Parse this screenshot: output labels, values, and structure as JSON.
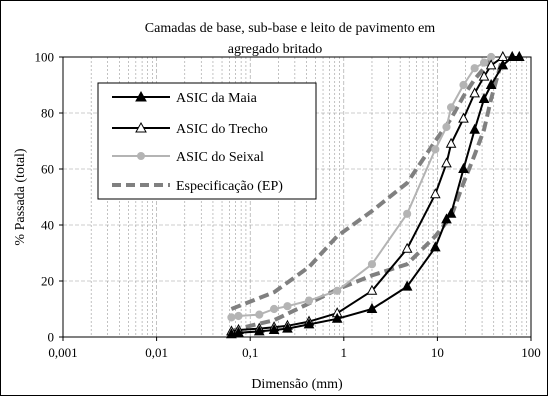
{
  "chart_data": {
    "type": "line",
    "title_lines": [
      "Camadas de base, sub-base e leito de pavimento em",
      "agregado britado"
    ],
    "xlabel": "Dimensão (mm)",
    "ylabel": "% Passada (total)",
    "xscale": "log",
    "xlim": [
      0.001,
      100
    ],
    "ylim": [
      0,
      100
    ],
    "x_ticks": [
      "0,001",
      "0,01",
      "0,1",
      "1",
      "10",
      "100"
    ],
    "y_ticks": [
      "0",
      "20",
      "40",
      "60",
      "80",
      "100"
    ],
    "grid": true,
    "legend_position": "top-left",
    "series": [
      {
        "name": "ASIC da Maia",
        "color": "#000000",
        "marker": "filled-triangle",
        "line": "solid",
        "points": [
          [
            0.063,
            1
          ],
          [
            0.075,
            1.5
          ],
          [
            0.125,
            2
          ],
          [
            0.18,
            2.5
          ],
          [
            0.25,
            3
          ],
          [
            0.425,
            4.5
          ],
          [
            0.85,
            6.5
          ],
          [
            2,
            10
          ],
          [
            4.75,
            18
          ],
          [
            9.5,
            32
          ],
          [
            12.5,
            42
          ],
          [
            14,
            44
          ],
          [
            19,
            60
          ],
          [
            25,
            74
          ],
          [
            31.5,
            85
          ],
          [
            37.5,
            90
          ],
          [
            50,
            97
          ],
          [
            63,
            100
          ],
          [
            75,
            100
          ]
        ]
      },
      {
        "name": "ASIC do Trecho",
        "color": "#000000",
        "marker": "open-triangle",
        "line": "solid",
        "points": [
          [
            0.063,
            2
          ],
          [
            0.075,
            2.5
          ],
          [
            0.125,
            3
          ],
          [
            0.18,
            3.5
          ],
          [
            0.25,
            4
          ],
          [
            0.425,
            5.5
          ],
          [
            0.85,
            8.5
          ],
          [
            2,
            16.5
          ],
          [
            4.75,
            31.5
          ],
          [
            9.5,
            51
          ],
          [
            12.5,
            62
          ],
          [
            14,
            69
          ],
          [
            19,
            78
          ],
          [
            25,
            87
          ],
          [
            31.5,
            93
          ],
          [
            37.5,
            97
          ],
          [
            50,
            100
          ]
        ]
      },
      {
        "name": "ASIC do Seixal",
        "color": "#b4b4b4",
        "marker": "circle",
        "line": "solid",
        "points": [
          [
            0.063,
            7
          ],
          [
            0.075,
            7.5
          ],
          [
            0.125,
            8
          ],
          [
            0.18,
            10
          ],
          [
            0.25,
            11
          ],
          [
            0.425,
            13
          ],
          [
            0.85,
            16.5
          ],
          [
            2,
            26
          ],
          [
            4.75,
            44
          ],
          [
            9.5,
            67
          ],
          [
            12.5,
            75
          ],
          [
            14,
            82
          ],
          [
            19,
            90
          ],
          [
            25,
            96
          ],
          [
            31.5,
            98
          ],
          [
            37.5,
            100
          ]
        ]
      },
      {
        "name": "Especificação (EP)",
        "color": "#808080",
        "marker": "none",
        "line": "dashed",
        "points_upper": [
          [
            0.063,
            10
          ],
          [
            0.075,
            11
          ],
          [
            0.18,
            16
          ],
          [
            0.425,
            25
          ],
          [
            0.85,
            36
          ],
          [
            2,
            45
          ],
          [
            4.75,
            55
          ],
          [
            9.5,
            70
          ],
          [
            14,
            78
          ],
          [
            19,
            86
          ],
          [
            25,
            92
          ],
          [
            31.5,
            96
          ],
          [
            37.5,
            100
          ]
        ],
        "points_lower": [
          [
            0.063,
            2
          ],
          [
            0.075,
            3
          ],
          [
            0.18,
            6
          ],
          [
            0.425,
            12
          ],
          [
            0.85,
            17
          ],
          [
            2,
            22
          ],
          [
            4.75,
            26
          ],
          [
            9.5,
            36
          ],
          [
            14,
            43
          ],
          [
            19,
            55
          ],
          [
            25,
            65
          ],
          [
            31.5,
            74
          ],
          [
            37.5,
            85
          ],
          [
            50,
            100
          ]
        ]
      }
    ]
  }
}
